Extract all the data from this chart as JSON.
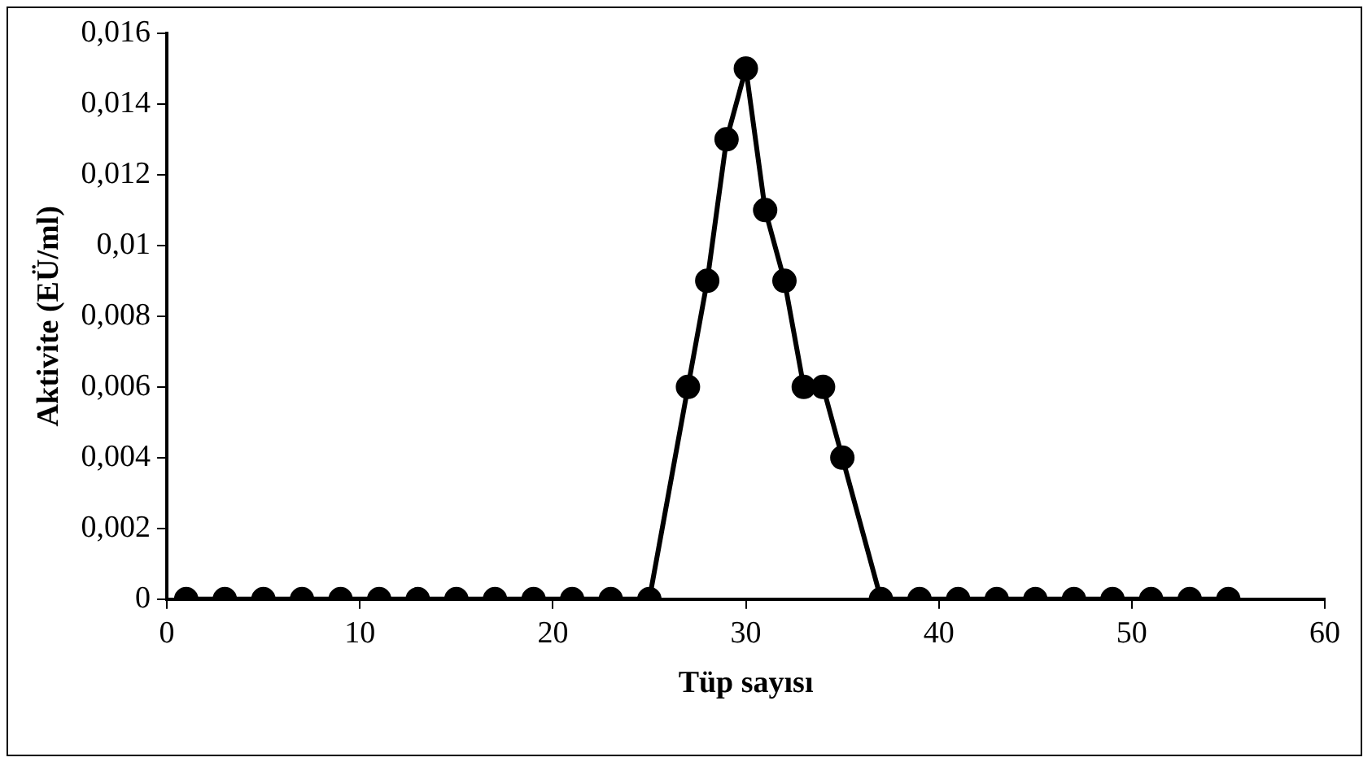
{
  "chart_data": {
    "type": "line",
    "xlabel": "Tüp sayısı",
    "ylabel": "Aktivite (EÜ/ml)",
    "x": [
      1,
      3,
      5,
      7,
      9,
      11,
      13,
      15,
      17,
      19,
      21,
      23,
      25,
      27,
      28,
      29,
      30,
      31,
      32,
      33,
      34,
      35,
      37,
      39,
      41,
      43,
      45,
      47,
      49,
      51,
      53,
      55
    ],
    "series": [
      {
        "color": "#000000",
        "values": [
          0,
          0,
          0,
          0,
          0,
          0,
          0,
          0,
          0,
          0,
          0,
          0,
          0,
          0.006,
          0.009,
          0.013,
          0.015,
          0.011,
          0.009,
          0.006,
          0.006,
          0.004,
          0,
          0,
          0,
          0,
          0,
          0,
          0,
          0,
          0,
          0
        ]
      }
    ],
    "xlim": [
      0,
      60
    ],
    "xticks": [
      0,
      10,
      20,
      30,
      40,
      50,
      60
    ],
    "ylim": [
      0,
      0.016
    ],
    "yticks": [
      {
        "value": 0,
        "label": "0"
      },
      {
        "value": 0.002,
        "label": "0,002"
      },
      {
        "value": 0.004,
        "label": "0,004"
      },
      {
        "value": 0.006,
        "label": "0,006"
      },
      {
        "value": 0.008,
        "label": "0,008"
      },
      {
        "value": 0.01,
        "label": "0,01"
      },
      {
        "value": 0.012,
        "label": "0,012"
      },
      {
        "value": 0.014,
        "label": "0,014"
      },
      {
        "value": 0.016,
        "label": "0,016"
      }
    ],
    "grid": false,
    "legend": false,
    "marker": "circle",
    "line_style": "solid"
  }
}
